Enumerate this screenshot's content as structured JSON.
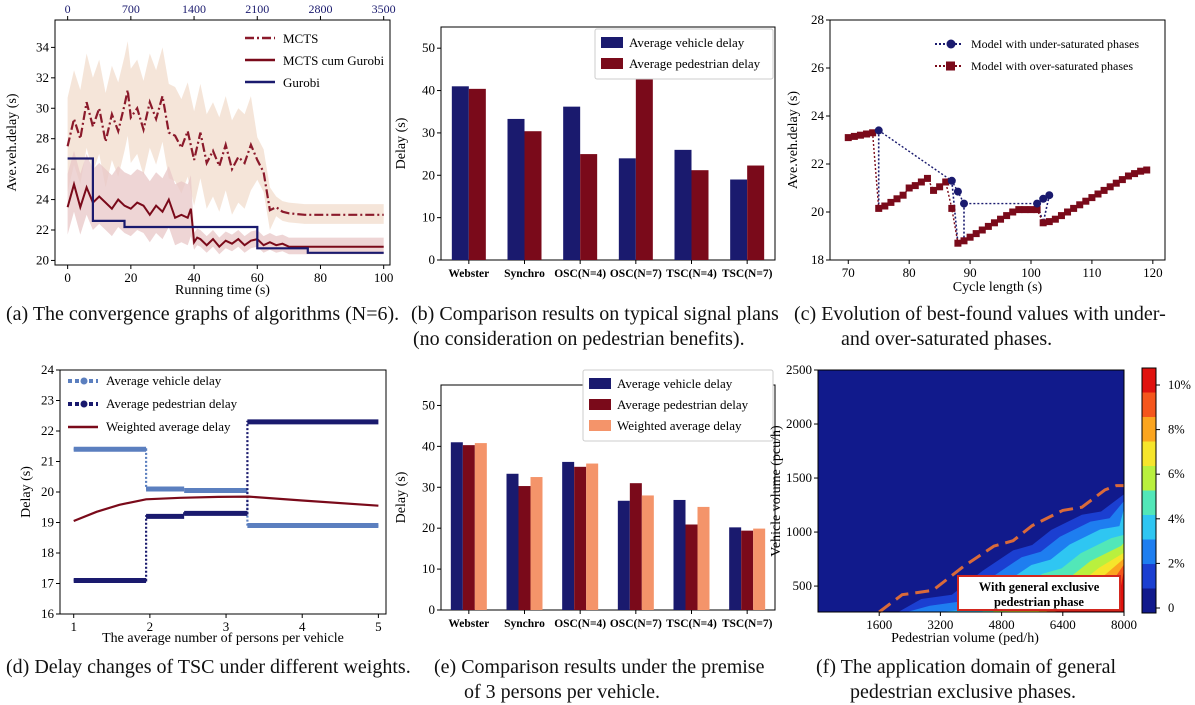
{
  "captions": {
    "a": [
      "(a) The convergence graphs of algorithms (N=6)."
    ],
    "b": [
      "(b) Comparison results on typical signal plans",
      "(no consideration on pedestrian benefits)."
    ],
    "c": [
      "(c) Evolution of best-found values with under-",
      "and over-saturated phases."
    ],
    "d": [
      "(d) Delay changes of TSC under different weights."
    ],
    "e": [
      "(e) Comparison results under the premise",
      "of 3 persons per vehicle."
    ],
    "f": [
      "(f) The application domain of general",
      "pedestrian exclusive phases."
    ]
  },
  "colors": {
    "navy": "#1a1a6e",
    "darkred": "#7a0a1a",
    "mcts": "#8b1a2b",
    "steel": "#5b7fbf",
    "salmon": "#f4946a"
  },
  "chart_data": [
    {
      "id": "a",
      "type": "line",
      "xlabel": "Running time (s)",
      "ylabel": "Ave.veh.delay (s)",
      "xlim": [
        -4,
        102
      ],
      "ylim": [
        19.7,
        35.8
      ],
      "xticks": [
        0,
        20,
        40,
        60,
        80,
        100
      ],
      "yticks": [
        20,
        22,
        24,
        26,
        28,
        30,
        32,
        34
      ],
      "top_axis_ticks": [
        "0",
        "700",
        "1400",
        "2100",
        "2800",
        "3500"
      ],
      "legend": [
        "MCTS",
        "MCTS cum Gurobi",
        "Gurobi"
      ],
      "series": [
        {
          "name": "MCTS",
          "x": [
            0,
            2,
            4,
            6,
            8,
            10,
            12,
            14,
            16,
            18,
            19,
            20,
            22,
            24,
            26,
            28,
            30,
            32,
            34,
            36,
            38,
            40,
            42,
            44,
            46,
            48,
            50,
            52,
            54,
            56,
            58,
            60,
            62,
            64,
            66,
            68,
            70,
            75,
            80,
            85,
            90,
            95,
            100
          ],
          "y": [
            27.5,
            29.3,
            28.0,
            30.4,
            28.8,
            30.0,
            27.8,
            29.6,
            28.5,
            30.2,
            31.2,
            29.4,
            30.0,
            28.6,
            30.4,
            29.3,
            30.8,
            28.4,
            28.2,
            27.4,
            28.5,
            26.6,
            28.4,
            26.4,
            27.2,
            26.2,
            27.6,
            26.0,
            26.8,
            26.4,
            27.6,
            26.6,
            25.8,
            23.3,
            23.5,
            23.2,
            23.1,
            23.0,
            23.0,
            23.0,
            23.0,
            23.0,
            23.0
          ]
        },
        {
          "name": "MCTS cum Gurobi",
          "x": [
            0,
            2,
            4,
            6,
            8,
            10,
            12,
            14,
            16,
            18,
            20,
            22,
            24,
            26,
            28,
            30,
            32,
            34,
            36,
            38,
            39,
            40,
            41,
            42,
            44,
            46,
            48,
            50,
            52,
            54,
            56,
            58,
            60,
            62,
            64,
            66,
            68,
            70,
            75,
            80,
            85,
            90,
            95,
            100
          ],
          "y": [
            23.5,
            25.0,
            23.5,
            24.8,
            23.8,
            24.2,
            23.8,
            23.4,
            24.0,
            23.6,
            23.4,
            23.8,
            23.6,
            23.0,
            23.6,
            23.2,
            24.0,
            22.8,
            23.0,
            22.8,
            23.4,
            21.2,
            21.5,
            21.4,
            21.0,
            21.4,
            20.9,
            21.3,
            21.1,
            21.4,
            21.0,
            21.3,
            21.4,
            21.0,
            21.2,
            21.0,
            21.1,
            20.9,
            20.9,
            20.9,
            20.9,
            20.9,
            20.9,
            20.9
          ]
        },
        {
          "name": "Gurobi",
          "x": [
            0,
            8,
            8,
            18,
            18,
            60,
            60,
            76,
            76,
            100
          ],
          "y": [
            26.7,
            26.7,
            22.6,
            22.6,
            22.2,
            22.2,
            20.8,
            20.8,
            20.5,
            20.5
          ]
        }
      ]
    },
    {
      "id": "b",
      "type": "bar",
      "ylabel": "Delay (s)",
      "ylim": [
        0,
        55
      ],
      "yticks": [
        0,
        10,
        20,
        30,
        40,
        50
      ],
      "categories": [
        "Webster",
        "Synchro",
        "OSC(N=4)",
        "OSC(N=7)",
        "TSC(N=4)",
        "TSC(N=7)"
      ],
      "series": [
        {
          "name": "Average vehicle delay",
          "values": [
            41,
            33.3,
            36.2,
            24,
            26,
            19
          ]
        },
        {
          "name": "Average pedestrian delay",
          "values": [
            40.4,
            30.4,
            25,
            45.4,
            21.2,
            22.3
          ]
        }
      ]
    },
    {
      "id": "c",
      "type": "scatter",
      "xlabel": "Cycle length (s)",
      "ylabel": "Ave.veh.delay (s)",
      "xlim": [
        67,
        122
      ],
      "ylim": [
        18,
        28
      ],
      "xticks": [
        70,
        80,
        90,
        100,
        110,
        120
      ],
      "yticks": [
        18,
        20,
        22,
        24,
        26,
        28
      ],
      "legend": [
        "Model with under-saturated phases",
        "Model with over-saturated phases"
      ],
      "series": [
        {
          "name": "Model with under-saturated phases",
          "points": [
            [
              75,
              23.4
            ],
            [
              87,
              21.3
            ],
            [
              88,
              20.85
            ],
            [
              89,
              20.35
            ],
            [
              101,
              20.35
            ],
            [
              102,
              20.55
            ],
            [
              103,
              20.7
            ]
          ]
        },
        {
          "name": "Model with over-saturated phases",
          "points": [
            [
              70,
              23.1
            ],
            [
              71,
              23.15
            ],
            [
              72,
              23.2
            ],
            [
              73,
              23.25
            ],
            [
              74,
              23.3
            ],
            [
              75,
              20.15
            ],
            [
              76,
              20.25
            ],
            [
              77,
              20.4
            ],
            [
              78,
              20.55
            ],
            [
              79,
              20.7
            ],
            [
              80,
              21.0
            ],
            [
              81,
              21.1
            ],
            [
              82,
              21.25
            ],
            [
              83,
              21.4
            ],
            [
              84,
              20.9
            ],
            [
              85,
              21.05
            ],
            [
              86,
              21.25
            ],
            [
              87,
              20.15
            ],
            [
              88,
              18.7
            ],
            [
              89,
              18.8
            ],
            [
              90,
              18.95
            ],
            [
              91,
              19.1
            ],
            [
              92,
              19.25
            ],
            [
              93,
              19.4
            ],
            [
              94,
              19.55
            ],
            [
              95,
              19.7
            ],
            [
              96,
              19.85
            ],
            [
              97,
              20.0
            ],
            [
              98,
              20.1
            ],
            [
              99,
              20.1
            ],
            [
              100,
              20.1
            ],
            [
              101,
              20.1
            ],
            [
              102,
              19.55
            ],
            [
              103,
              19.6
            ],
            [
              104,
              19.7
            ],
            [
              105,
              19.85
            ],
            [
              106,
              20.0
            ],
            [
              107,
              20.15
            ],
            [
              108,
              20.3
            ],
            [
              109,
              20.45
            ],
            [
              110,
              20.6
            ],
            [
              111,
              20.75
            ],
            [
              112,
              20.9
            ],
            [
              113,
              21.05
            ],
            [
              114,
              21.2
            ],
            [
              115,
              21.35
            ],
            [
              116,
              21.5
            ],
            [
              117,
              21.6
            ],
            [
              118,
              21.7
            ],
            [
              119,
              21.75
            ]
          ]
        }
      ]
    },
    {
      "id": "d",
      "type": "line",
      "xlabel": "The average number of persons per vehicle",
      "ylabel": "Delay (s)",
      "xlim": [
        0.82,
        5.1
      ],
      "ylim": [
        16,
        24
      ],
      "xticks": [
        1,
        2,
        3,
        4,
        5
      ],
      "yticks": [
        16,
        17,
        18,
        19,
        20,
        21,
        22,
        23,
        24
      ],
      "legend": [
        "Average vehicle delay",
        "Average pedestrian delay",
        "Weighted average delay"
      ],
      "series": [
        {
          "name": "Average vehicle delay",
          "x": [
            1,
            1.95,
            1.95,
            2.45,
            2.45,
            3.28,
            3.28,
            5
          ],
          "y": [
            21.4,
            21.4,
            20.1,
            20.1,
            20.05,
            20.05,
            18.9,
            18.9
          ]
        },
        {
          "name": "Average pedestrian delay",
          "x": [
            1,
            1.95,
            1.95,
            2.45,
            2.45,
            3.28,
            3.28,
            5
          ],
          "y": [
            17.1,
            17.1,
            19.2,
            19.2,
            19.3,
            19.3,
            22.3,
            22.3
          ]
        },
        {
          "name": "Weighted average delay",
          "x": [
            1,
            1.3,
            1.6,
            1.95,
            2.4,
            2.9,
            3.3,
            4,
            5
          ],
          "y": [
            19.05,
            19.35,
            19.58,
            19.76,
            19.81,
            19.84,
            19.85,
            19.72,
            19.55
          ]
        }
      ]
    },
    {
      "id": "e",
      "type": "bar",
      "ylabel": "Delay (s)",
      "ylim": [
        0,
        55
      ],
      "yticks": [
        0,
        10,
        20,
        30,
        40,
        50
      ],
      "categories": [
        "Webster",
        "Synchro",
        "OSC(N=4)",
        "OSC(N=7)",
        "TSC(N=4)",
        "TSC(N=7)"
      ],
      "series": [
        {
          "name": "Average vehicle delay",
          "values": [
            41,
            33.3,
            36.2,
            26.7,
            26.9,
            20.2
          ]
        },
        {
          "name": "Average pedestrian delay",
          "values": [
            40.3,
            30.3,
            35,
            31,
            20.9,
            19.4
          ]
        },
        {
          "name": "Weighted average delay",
          "values": [
            40.8,
            32.5,
            35.8,
            28,
            25.2,
            19.9
          ]
        }
      ]
    },
    {
      "id": "f",
      "type": "heatmap",
      "xlabel": "Pedestrian volume (ped/h)",
      "ylabel": "Vehicle volume (pcu/h)",
      "xlim": [
        0,
        8000
      ],
      "ylim": [
        260,
        2500
      ],
      "xticks": [
        1600,
        3200,
        4800,
        6400,
        8000
      ],
      "yticks": [
        500,
        1000,
        1500,
        2000,
        2500
      ],
      "colorbar_ticks": [
        "10%",
        "8%",
        "6%",
        "4%",
        "2%",
        "0"
      ],
      "boundary": [
        [
          1600,
          260
        ],
        [
          2200,
          420
        ],
        [
          3000,
          460
        ],
        [
          3800,
          680
        ],
        [
          4600,
          870
        ],
        [
          5100,
          920
        ],
        [
          5600,
          1060
        ],
        [
          6400,
          1200
        ],
        [
          6900,
          1230
        ],
        [
          7500,
          1390
        ],
        [
          7800,
          1430
        ],
        [
          8000,
          1430
        ]
      ],
      "annotation": [
        "With general exclusive",
        "pedestrian  phase"
      ]
    }
  ]
}
